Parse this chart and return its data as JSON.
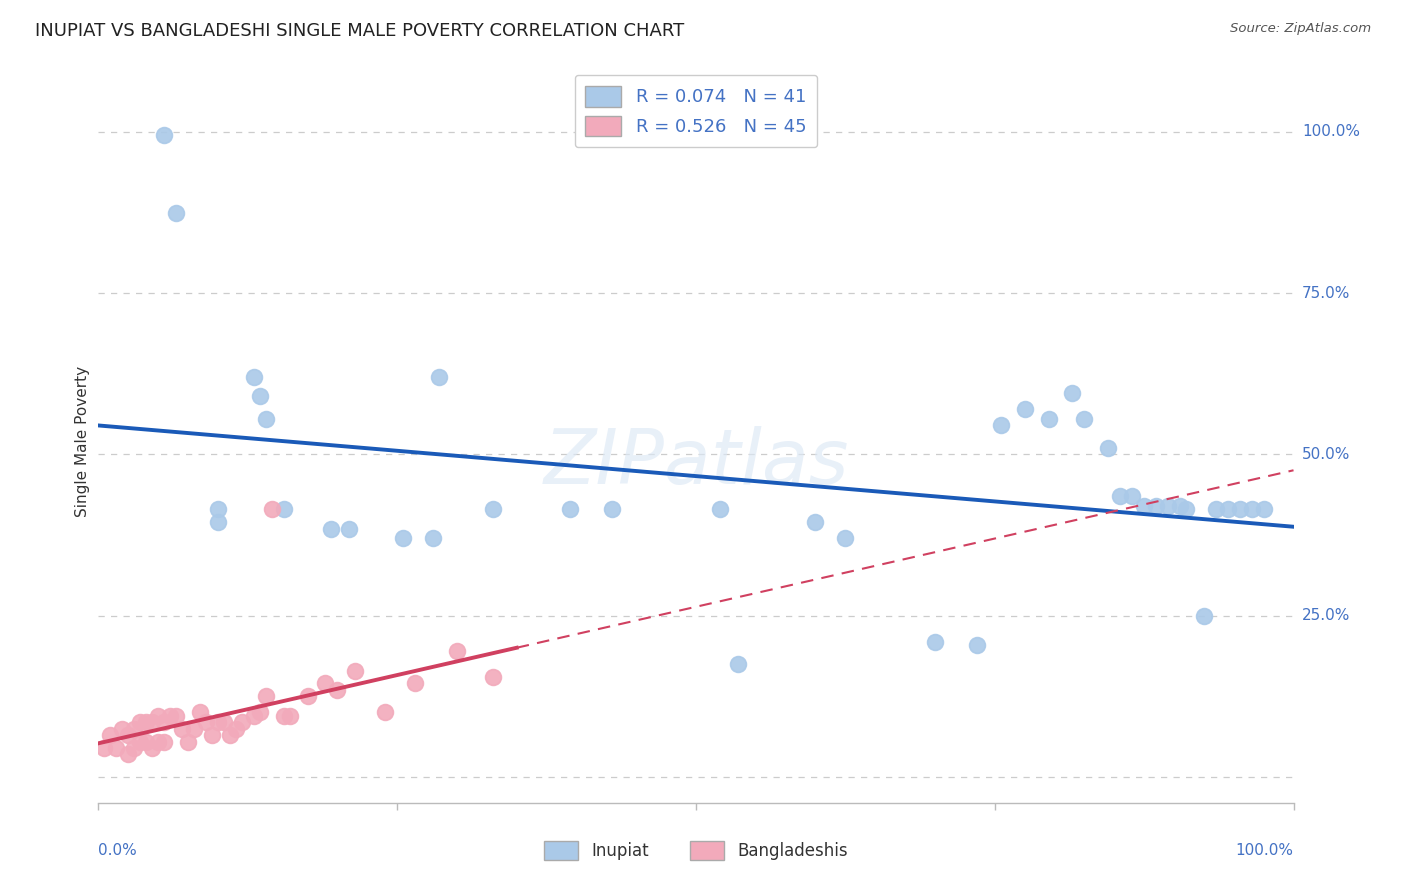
{
  "title": "INUPIAT VS BANGLADESHI SINGLE MALE POVERTY CORRELATION CHART",
  "source": "Source: ZipAtlas.com",
  "ylabel": "Single Male Poverty",
  "inupiat_r": 0.074,
  "inupiat_n": 41,
  "bangladeshi_r": 0.526,
  "bangladeshi_n": 45,
  "inupiat_color": "#aac9e8",
  "bangladeshi_color": "#f2aabb",
  "inupiat_line_color": "#1a5ab8",
  "bangladeshi_line_color": "#d04060",
  "legend_text_color": "#4472c4",
  "watermark_text": "ZIPatlas",
  "background_color": "#ffffff",
  "grid_color": "#cccccc",
  "ytick_color": "#4472c4",
  "inupiat_x": [
    0.055,
    0.065,
    0.1,
    0.1,
    0.13,
    0.135,
    0.14,
    0.155,
    0.195,
    0.21,
    0.255,
    0.28,
    0.285,
    0.33,
    0.395,
    0.43,
    0.52,
    0.535,
    0.6,
    0.625,
    0.7,
    0.735,
    0.755,
    0.775,
    0.795,
    0.815,
    0.825,
    0.845,
    0.855,
    0.865,
    0.875,
    0.885,
    0.895,
    0.905,
    0.91,
    0.925,
    0.935,
    0.945,
    0.955,
    0.965,
    0.975
  ],
  "inupiat_y": [
    0.995,
    0.875,
    0.415,
    0.395,
    0.62,
    0.59,
    0.555,
    0.415,
    0.385,
    0.385,
    0.37,
    0.37,
    0.62,
    0.415,
    0.415,
    0.415,
    0.415,
    0.175,
    0.395,
    0.37,
    0.21,
    0.205,
    0.545,
    0.57,
    0.555,
    0.595,
    0.555,
    0.51,
    0.435,
    0.435,
    0.42,
    0.42,
    0.42,
    0.42,
    0.415,
    0.25,
    0.415,
    0.415,
    0.415,
    0.415,
    0.415
  ],
  "bangladeshi_x": [
    0.005,
    0.01,
    0.015,
    0.02,
    0.025,
    0.025,
    0.03,
    0.03,
    0.035,
    0.035,
    0.04,
    0.04,
    0.045,
    0.045,
    0.05,
    0.05,
    0.055,
    0.055,
    0.06,
    0.065,
    0.07,
    0.075,
    0.08,
    0.085,
    0.09,
    0.095,
    0.1,
    0.105,
    0.11,
    0.115,
    0.12,
    0.13,
    0.135,
    0.14,
    0.145,
    0.155,
    0.16,
    0.175,
    0.19,
    0.2,
    0.215,
    0.24,
    0.265,
    0.3,
    0.33
  ],
  "bangladeshi_y": [
    0.045,
    0.065,
    0.045,
    0.075,
    0.065,
    0.035,
    0.075,
    0.045,
    0.085,
    0.055,
    0.085,
    0.055,
    0.085,
    0.045,
    0.095,
    0.055,
    0.085,
    0.055,
    0.095,
    0.095,
    0.075,
    0.055,
    0.075,
    0.1,
    0.085,
    0.065,
    0.085,
    0.085,
    0.065,
    0.075,
    0.085,
    0.095,
    0.1,
    0.125,
    0.415,
    0.095,
    0.095,
    0.125,
    0.145,
    0.135,
    0.165,
    0.1,
    0.145,
    0.195,
    0.155
  ],
  "ytick_positions": [
    0.0,
    0.25,
    0.5,
    0.75,
    1.0
  ],
  "ytick_labels": [
    "",
    "25.0%",
    "50.0%",
    "75.0%",
    "100.0%"
  ],
  "xlim": [
    0.0,
    1.0
  ],
  "ylim": [
    -0.04,
    1.08
  ]
}
